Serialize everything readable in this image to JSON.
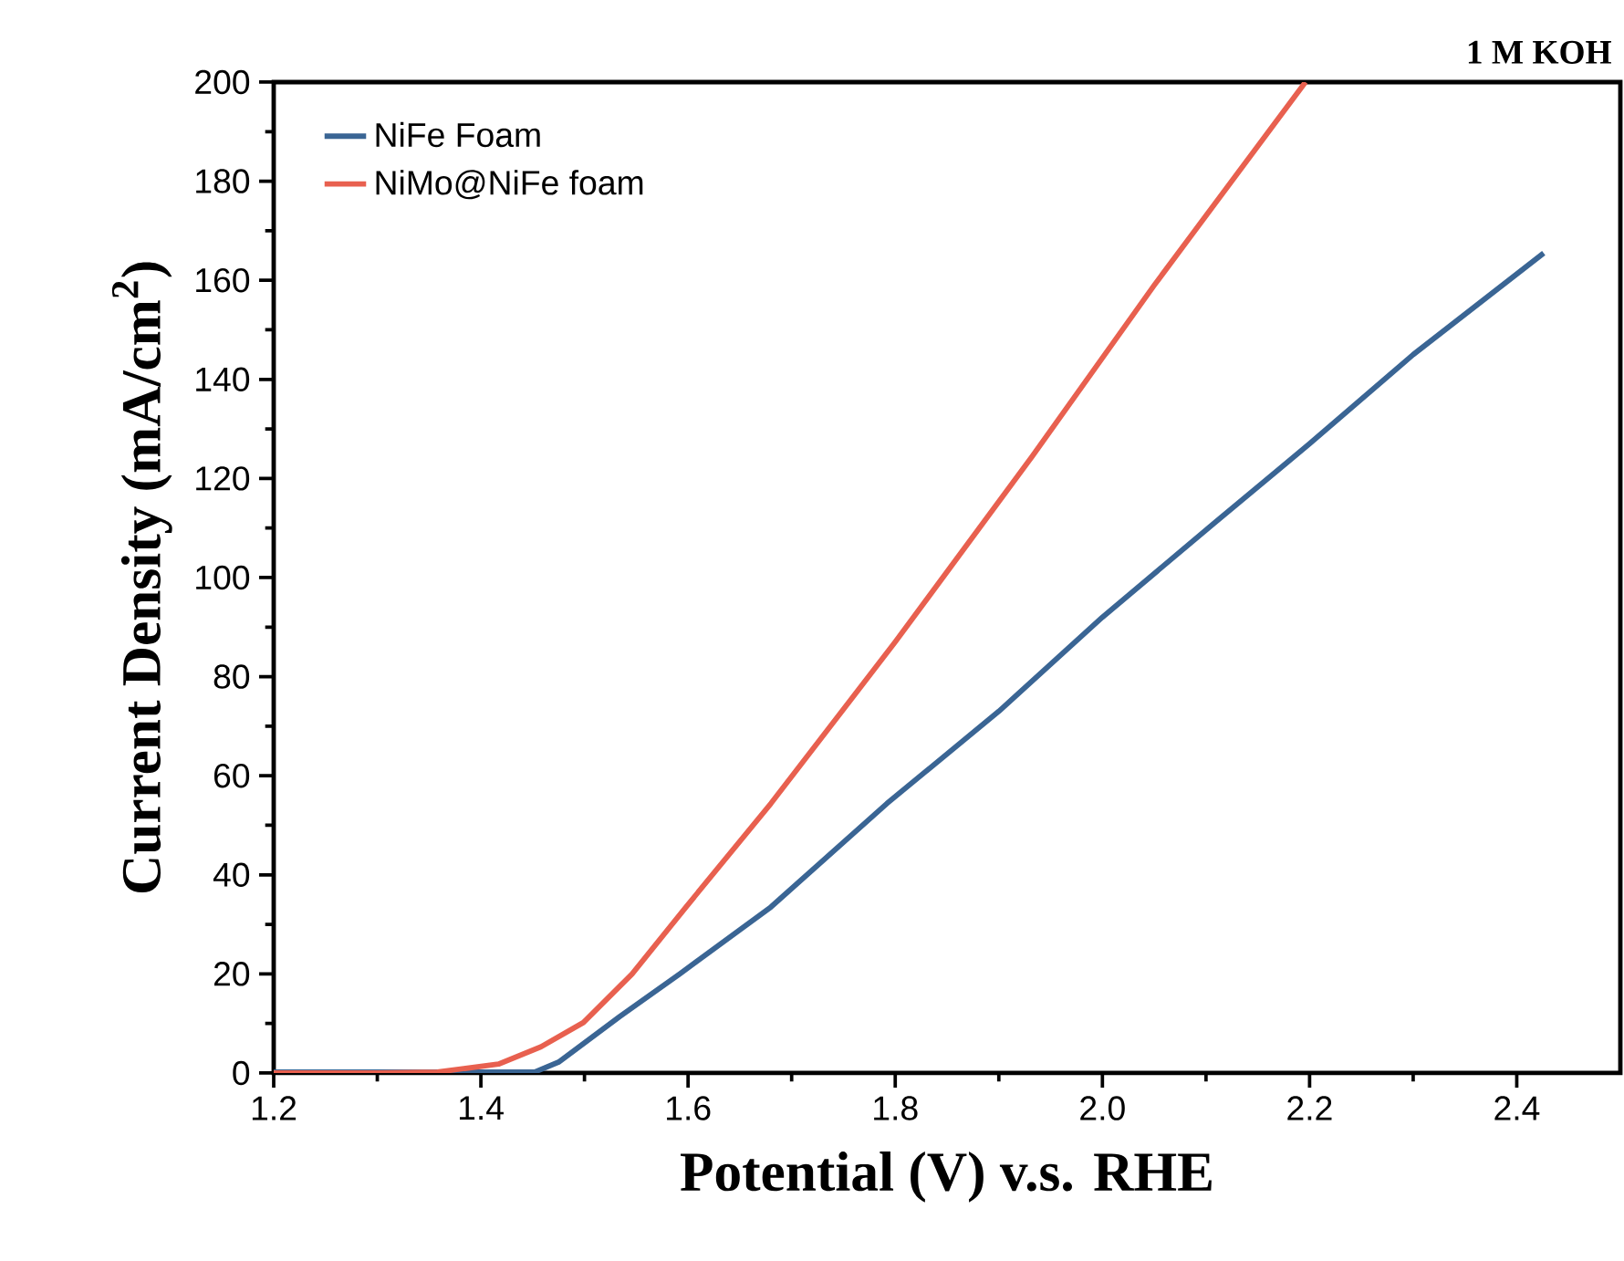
{
  "chart_data": {
    "type": "line",
    "title": "1 M KOH",
    "xlabel": "Potential (V) v.s. RHE",
    "ylabel": "Current Density (mA/cm$^{2}$)",
    "xlim": [
      1.2,
      2.5
    ],
    "ylim": [
      0,
      200
    ],
    "xticks": [
      1.2,
      1.4,
      1.6,
      1.8,
      {
        "value": 2,
        "label": "2.0"
      },
      2.2,
      2.4
    ],
    "yticks": [
      0,
      20,
      40,
      60,
      80,
      100,
      120,
      140,
      160,
      180,
      200
    ],
    "legend": "top left",
    "grid": false,
    "marker": "none",
    "line_style": "solid",
    "series": [
      {
        "name": "NiFe Foam",
        "color": "#3a6594",
        "x": [
          1.2,
          1.3,
          1.4,
          1.452,
          1.475,
          1.534,
          1.592,
          1.68,
          1.792,
          1.9,
          2.0,
          2.108,
          2.2,
          2.3,
          2.426
        ],
        "values": [
          0.2,
          0.2,
          0.2,
          0.2,
          2.2,
          11.4,
          20,
          33.5,
          54.4,
          73,
          92,
          111,
          127,
          145,
          165.5
        ]
      },
      {
        "name": "NiMo@NiFe foam",
        "color": "#e8604f",
        "x": [
          1.2,
          1.3,
          1.358,
          1.417,
          1.458,
          1.499,
          1.546,
          1.598,
          1.68,
          1.8,
          1.932,
          2.05,
          2.196
        ],
        "values": [
          0,
          0,
          0.2,
          1.8,
          5.3,
          10.2,
          20,
          33.5,
          54.4,
          87,
          124.4,
          159,
          200
        ]
      }
    ]
  }
}
